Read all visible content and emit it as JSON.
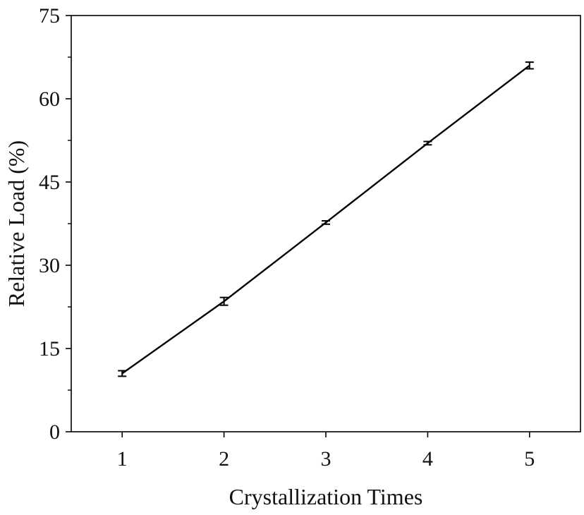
{
  "chart_data": {
    "type": "line",
    "title": "",
    "xlabel": "Crystallization Times",
    "ylabel": "Relative Load (%)",
    "xlim": [
      0.5,
      5.5
    ],
    "ylim": [
      0,
      75
    ],
    "x_ticks": [
      1,
      2,
      3,
      4,
      5
    ],
    "y_ticks": [
      0,
      15,
      30,
      45,
      60,
      75
    ],
    "grid": false,
    "legend": "none",
    "line_color": "#000000",
    "series": [
      {
        "x": [
          1,
          2,
          3,
          4,
          5
        ],
        "values": [
          10.5,
          23.5,
          37.7,
          52.0,
          66.0
        ],
        "errors": [
          0.5,
          0.7,
          0.3,
          0.3,
          0.6
        ]
      }
    ]
  }
}
